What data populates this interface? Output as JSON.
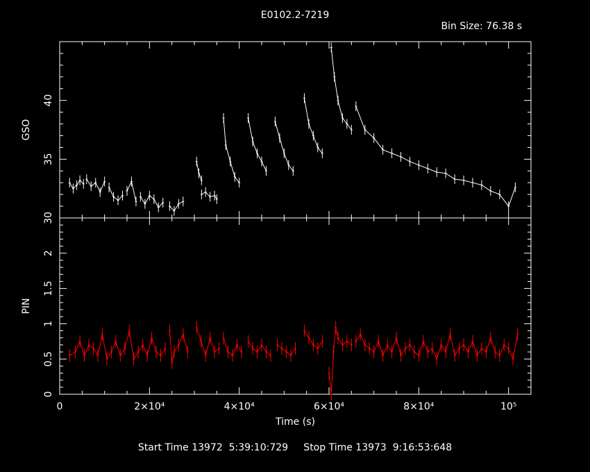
{
  "header": {
    "title": "E0102.2-7219",
    "bin_size": "Bin Size: 76.38 s"
  },
  "footer": {
    "times": "Start Time 13972  5:39:10:729     Stop Time 13973  9:16:53:648"
  },
  "colors": {
    "background": "#000000",
    "axes": "#ffffff",
    "gso_series": "#ffffff",
    "pin_series": "#ff0000"
  },
  "chart_data": [
    {
      "type": "line",
      "title": "E0102.2-7219",
      "ylabel": "GSO",
      "xlabel": "",
      "xlim": [
        0,
        105000
      ],
      "ylim": [
        30,
        45
      ],
      "yticks": [
        30,
        35,
        40
      ],
      "ytick_labels": [
        "30",
        "35",
        "40"
      ],
      "error_bars": true,
      "series": [
        {
          "name": "",
          "color": "#ffffff",
          "segments": [
            {
              "x": [
                2200,
                3000,
                3800,
                4500,
                5300
              ],
              "y": [
                33.0,
                32.5,
                32.8,
                33.2,
                32.9
              ]
            },
            {
              "x": [
                6000,
                7000,
                8000,
                9000,
                10000
              ],
              "y": [
                33.3,
                32.7,
                33.0,
                32.2,
                33.1
              ]
            },
            {
              "x": [
                11000,
                12000,
                13000,
                14000
              ],
              "y": [
                32.6,
                31.8,
                31.5,
                31.9
              ]
            },
            {
              "x": [
                15000,
                16000,
                17000
              ],
              "y": [
                32.3,
                33.1,
                31.4
              ]
            },
            {
              "x": [
                18000,
                19000,
                20000,
                21000,
                22000,
                23000
              ],
              "y": [
                31.8,
                31.2,
                31.9,
                31.6,
                30.9,
                31.3
              ]
            },
            {
              "x": [
                24500,
                25500,
                26500,
                27500
              ],
              "y": [
                31.0,
                30.6,
                31.2,
                31.4
              ]
            },
            {
              "x": [
                30500,
                31000,
                31600
              ],
              "y": [
                34.8,
                33.8,
                33.2
              ]
            },
            {
              "x": [
                31600,
                32500,
                33500,
                34500,
                35000
              ],
              "y": [
                32.0,
                32.2,
                31.8,
                31.9,
                31.6
              ]
            },
            {
              "x": [
                36500,
                37000,
                38000,
                39000,
                40000
              ],
              "y": [
                38.5,
                36.2,
                34.8,
                33.5,
                33.0
              ]
            },
            {
              "x": [
                42000,
                43000,
                44000,
                45000,
                46000
              ],
              "y": [
                38.5,
                36.5,
                35.5,
                34.8,
                34.0
              ]
            },
            {
              "x": [
                48000,
                49000,
                50000,
                51000,
                52000
              ],
              "y": [
                38.2,
                36.8,
                35.5,
                34.5,
                34.0
              ]
            },
            {
              "x": [
                54500,
                55500,
                56500,
                57500,
                58500
              ],
              "y": [
                40.2,
                38.0,
                37.0,
                36.0,
                35.5
              ]
            },
            {
              "x": [
                60500,
                61200,
                62000,
                63000,
                64000,
                65000
              ],
              "y": [
                44.5,
                42.0,
                40.0,
                38.5,
                38.0,
                37.5
              ]
            },
            {
              "x": [
                66000,
                68000,
                70000,
                72000,
                74000,
                76000,
                78000,
                80000,
                82000,
                84000,
                86000,
                88000,
                90000,
                92000,
                94000,
                96000,
                98000,
                100000,
                101500
              ],
              "y": [
                39.5,
                37.5,
                36.8,
                35.8,
                35.5,
                35.2,
                34.8,
                34.5,
                34.2,
                33.9,
                33.8,
                33.3,
                33.2,
                33.0,
                32.8,
                32.3,
                32.0,
                31.0,
                32.6
              ]
            }
          ]
        }
      ]
    },
    {
      "type": "line",
      "ylabel": "PIN",
      "xlabel": "Time (s)",
      "xlim": [
        0,
        105000
      ],
      "ylim": [
        0,
        2.5
      ],
      "yticks": [
        0,
        0.5,
        1,
        1.5,
        2
      ],
      "ytick_labels": [
        "0",
        "0.5",
        "1",
        "1.5",
        "2"
      ],
      "xticks": [
        0,
        20000,
        40000,
        60000,
        80000,
        100000
      ],
      "xtick_labels": [
        "0",
        "2×10⁴",
        "4×10⁴",
        "6×10⁴",
        "8×10⁴",
        "10⁵"
      ],
      "error_bars": true,
      "series": [
        {
          "name": "",
          "color": "#ff0000",
          "segments": [
            {
              "x": [
                2200,
                3500,
                4500,
                5500,
                6500,
                7500,
                8500,
                9500,
                10500,
                11500,
                12500,
                13500,
                14500,
                15500,
                16500,
                17500,
                18500,
                19500,
                20500,
                21500,
                22500,
                23500
              ],
              "y": [
                0.55,
                0.6,
                0.75,
                0.55,
                0.7,
                0.65,
                0.55,
                0.85,
                0.5,
                0.6,
                0.75,
                0.55,
                0.65,
                0.9,
                0.5,
                0.6,
                0.7,
                0.55,
                0.8,
                0.6,
                0.55,
                0.65
              ]
            },
            {
              "x": [
                24500,
                25000,
                25500,
                26500,
                27500,
                28500
              ],
              "y": [
                0.9,
                0.45,
                0.6,
                0.7,
                0.85,
                0.6
              ]
            },
            {
              "x": [
                30500,
                31500,
                32500,
                33500,
                34500,
                35500
              ],
              "y": [
                0.95,
                0.75,
                0.55,
                0.8,
                0.6,
                0.65
              ]
            },
            {
              "x": [
                36500,
                37500,
                38500,
                39500,
                40500
              ],
              "y": [
                0.8,
                0.6,
                0.55,
                0.7,
                0.6
              ]
            },
            {
              "x": [
                42000,
                43000,
                44000,
                45000,
                46000,
                47000
              ],
              "y": [
                0.75,
                0.65,
                0.6,
                0.7,
                0.6,
                0.55
              ]
            },
            {
              "x": [
                48500,
                49500,
                50500,
                51500,
                52500
              ],
              "y": [
                0.7,
                0.65,
                0.6,
                0.55,
                0.65
              ]
            },
            {
              "x": [
                54500,
                55500,
                56500,
                57500,
                58500
              ],
              "y": [
                0.9,
                0.8,
                0.7,
                0.65,
                0.75
              ]
            },
            {
              "x": [
                60000,
                60500,
                61000,
                61500,
                62000,
                63000,
                64000,
                65000
              ],
              "y": [
                0.3,
                0.0,
                0.6,
                0.95,
                0.8,
                0.7,
                0.75,
                0.7
              ]
            },
            {
              "x": [
                66000,
                67000,
                68000,
                69000,
                70000,
                71000,
                72000,
                73000,
                74000,
                75000,
                76000,
                77000,
                78000,
                79000,
                80000,
                81000,
                82000,
                83000,
                84000,
                85000,
                86000,
                87000,
                88000,
                89000,
                90000,
                91000,
                92000,
                93000,
                94000,
                95000,
                96000,
                97000,
                98000,
                99000,
                100000,
                101000,
                102000
              ],
              "y": [
                0.75,
                0.85,
                0.7,
                0.65,
                0.6,
                0.75,
                0.55,
                0.7,
                0.6,
                0.8,
                0.55,
                0.65,
                0.7,
                0.6,
                0.55,
                0.75,
                0.6,
                0.65,
                0.5,
                0.7,
                0.6,
                0.85,
                0.55,
                0.65,
                0.7,
                0.6,
                0.75,
                0.55,
                0.65,
                0.6,
                0.8,
                0.6,
                0.55,
                0.7,
                0.65,
                0.5,
                0.85
              ]
            }
          ]
        }
      ]
    }
  ]
}
